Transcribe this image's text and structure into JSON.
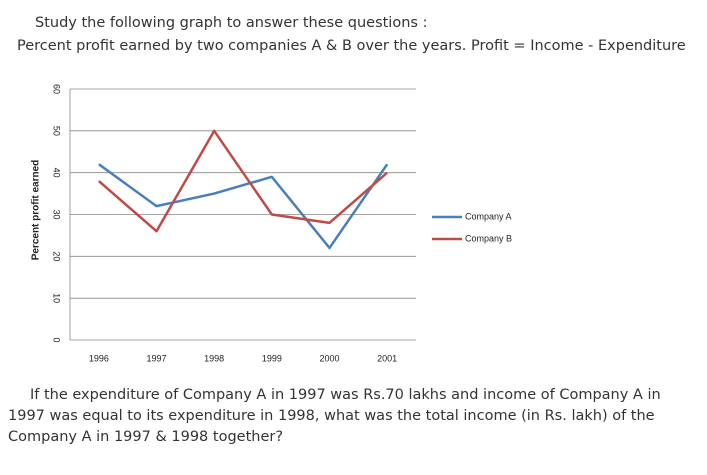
{
  "heading": [
    "Study the following graph to answer these questions :",
    "Percent profit earned by two companies A & B over the years. Profit = Income - Expenditure"
  ],
  "chart_data": {
    "type": "line",
    "ylabel": "Percent profit earned",
    "categories": [
      "1996",
      "1997",
      "1998",
      "1999",
      "2000",
      "2001"
    ],
    "series": [
      {
        "name": "Company A",
        "color": "#4a7ebb",
        "values": [
          42,
          32,
          35,
          39,
          22,
          42
        ]
      },
      {
        "name": "Company B",
        "color": "#be4b48",
        "values": [
          38,
          26,
          50,
          30,
          28,
          40
        ]
      }
    ],
    "ylim": [
      0,
      60
    ],
    "yticks": [
      0,
      10,
      20,
      30,
      40,
      50,
      60
    ],
    "grid": true,
    "legend": "right"
  },
  "question": "If the expenditure of Company A in 1997 was Rs.70 lakhs and income of Company A in 1997 was equal to its expenditure in 1998, what was the total income (in Rs. lakh) of the Company A in 1997 & 1998 together?"
}
